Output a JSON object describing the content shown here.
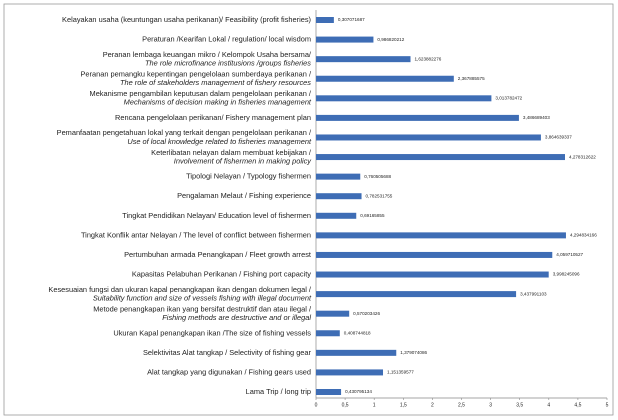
{
  "chart_data": {
    "type": "hbar",
    "color": "#3e6db5",
    "categories": [
      "Kelayakan usaha (keuntungan usaha perikanan)/ Feasibility (profit fisheries)",
      "Peraturan /Kearifan Lokal / regulation/ local wisdom",
      "Peranan lembaga keuangan mikro / Kelompok Usaha bersama/\nThe role microfinance institusions /groups fisheries",
      "Peranan pemangku kepentingan  pengelolaan sumberdaya perikanan /\nThe role of stakeholders management of fishery resources",
      "Mekanisme pengambilan keputusan dalam pengelolaan perikanan /\nMechanisms of decision making in fisheries management",
      "Rencana pengelolaan perikanan/ Fishery management plan",
      "Pemanfaatan pengetahuan lokal yang terkait dengan pengelolaan perikanan /\nUse of local knowledge related to fisheries management",
      "Keterlibatan nelayan dalam membuat kebijakan /\nInvolvement of fishermen in making policy",
      "Tipologi Nelayan / Typology fishermen",
      "Pengalaman Melaut / Fishing experience",
      "Tingkat Pendidikan Nelayan/ Education level of fishermen",
      "Tingkat Konflik antar Nelayan  / The level of conflict between fishermen",
      "Pertumbuhan armada Penangkapan / Fleet growth arrest",
      "Kapasitas Pelabuhan Perikanan / Fishing port capacity",
      "Kesesuaian fungsi dan ukuran kapal penangkapan ikan dengan dokumen legal /\nSuitability function and size of vessels fishing with illegal document",
      "Metode penangkapan ikan yang bersifat destruktif dan atau ilegal /\nFishing methods are destructive and or illegal",
      "Ukuran Kapal penangkapan ikan /The size of fishing vessels",
      "Selektivitas Alat tangkap  / Selectivity of fishing gear",
      "Alat tangkap yang digunakan / Fishing gears used",
      "Lama Trip / long trip"
    ],
    "values": [
      0.307071687,
      0.986820212,
      1.623882276,
      2.367885575,
      3.013782472,
      3.486689403,
      3.864639337,
      4.278312622,
      0.760505688,
      0.782531755,
      0.69165855,
      4.294834166,
      4.059710527,
      3.998245096,
      3.437991103,
      0.570203426,
      0.408744818,
      1.379074086,
      1.151359577,
      0.430795134
    ],
    "value_labels": [
      "0,307071687",
      "0,986820212",
      "1,623882276",
      "2,367885575",
      "3,013782472",
      "3,486689403",
      "3,864639337",
      "4,278312622",
      "0,760505688",
      "0,782531755",
      "0,69165855",
      "4,294834166",
      "4,059710527",
      "3,998245096",
      "3,437991103",
      "0,570203426",
      "0,408744818",
      "1,379074086",
      "1,151359577",
      "0,430795134"
    ],
    "xlim": [
      0,
      5
    ],
    "xticks": [
      0,
      {
        "value": 0.5,
        "label": "0,5"
      },
      1,
      {
        "value": 1.5,
        "label": "1,5"
      },
      2,
      {
        "value": 2.5,
        "label": "2,5"
      },
      3,
      {
        "value": 3.5,
        "label": "3,5"
      },
      4,
      {
        "value": 4.5,
        "label": "4,5"
      },
      5
    ]
  }
}
